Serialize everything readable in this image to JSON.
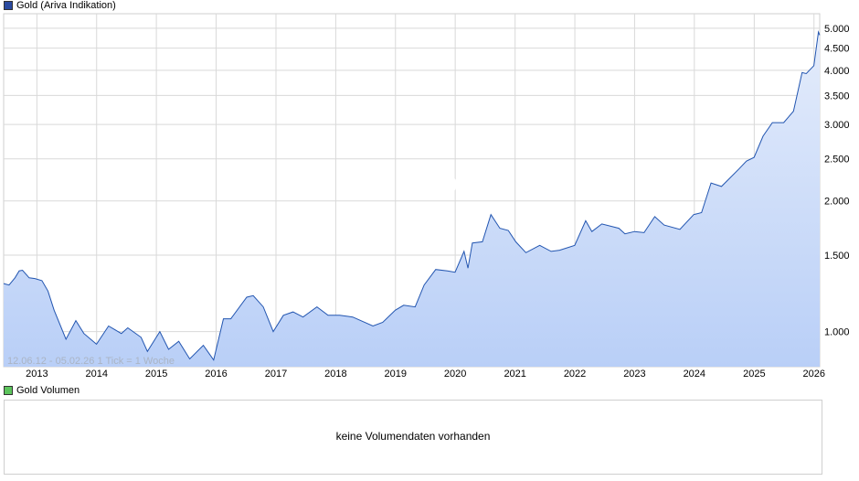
{
  "price_panel": {
    "legend_label": "Gold (Ariva Indikation)",
    "legend_color": "#2a4aa0",
    "range_info": "12.06.12 - 05.02.26   1 Tick = 1 Woche",
    "watermark": "ARIVA.DE"
  },
  "volume_panel": {
    "legend_label": "Gold Volumen",
    "legend_color": "#5cc45c",
    "message": "keine Volumendaten vorhanden"
  },
  "colors": {
    "line": "#2255b0",
    "fill_top": "#e4ecfb",
    "fill_bottom": "#b9cff7",
    "grid": "#d9d9d9"
  },
  "chart_data": {
    "type": "area",
    "title": "Gold (Ariva Indikation)",
    "yscale": "log",
    "ylim": [
      830,
      5400
    ],
    "xlim": [
      "2012-06-12",
      "2026-02-05"
    ],
    "y_ticks": [
      {
        "value": 1000,
        "label": "1.000"
      },
      {
        "value": 1500,
        "label": "1.500"
      },
      {
        "value": 2000,
        "label": "2.000"
      },
      {
        "value": 2500,
        "label": "2.500"
      },
      {
        "value": 3000,
        "label": "3.000"
      },
      {
        "value": 3500,
        "label": "3.500"
      },
      {
        "value": 4000,
        "label": "4.000"
      },
      {
        "value": 4500,
        "label": "4.500"
      },
      {
        "value": 5000,
        "label": "5.000"
      }
    ],
    "x_ticks": [
      {
        "value": "2013-01-01",
        "label": "2013"
      },
      {
        "value": "2014-01-01",
        "label": "2014"
      },
      {
        "value": "2015-01-01",
        "label": "2015"
      },
      {
        "value": "2016-01-01",
        "label": "2016"
      },
      {
        "value": "2017-01-01",
        "label": "2017"
      },
      {
        "value": "2018-01-01",
        "label": "2018"
      },
      {
        "value": "2019-01-01",
        "label": "2019"
      },
      {
        "value": "2020-01-01",
        "label": "2020"
      },
      {
        "value": "2021-01-01",
        "label": "2021"
      },
      {
        "value": "2022-01-01",
        "label": "2022"
      },
      {
        "value": "2023-01-01",
        "label": "2023"
      },
      {
        "value": "2024-01-01",
        "label": "2024"
      },
      {
        "value": "2025-01-01",
        "label": "2025"
      },
      {
        "value": "2026-01-01",
        "label": "2026"
      }
    ],
    "series": [
      {
        "points": [
          [
            "2012-06-12",
            1290
          ],
          [
            "2012-07-15",
            1280
          ],
          [
            "2012-08-20",
            1330
          ],
          [
            "2012-09-15",
            1380
          ],
          [
            "2012-10-05",
            1385
          ],
          [
            "2012-11-15",
            1330
          ],
          [
            "2012-12-20",
            1325
          ],
          [
            "2013-02-01",
            1310
          ],
          [
            "2013-03-10",
            1240
          ],
          [
            "2013-04-16",
            1120
          ],
          [
            "2013-06-28",
            960
          ],
          [
            "2013-08-27",
            1060
          ],
          [
            "2013-10-15",
            990
          ],
          [
            "2013-12-31",
            935
          ],
          [
            "2014-03-15",
            1030
          ],
          [
            "2014-06-01",
            990
          ],
          [
            "2014-07-10",
            1020
          ],
          [
            "2014-09-30",
            970
          ],
          [
            "2014-11-07",
            900
          ],
          [
            "2015-01-22",
            1000
          ],
          [
            "2015-03-17",
            910
          ],
          [
            "2015-05-18",
            950
          ],
          [
            "2015-07-24",
            865
          ],
          [
            "2015-10-15",
            930
          ],
          [
            "2015-12-17",
            860
          ],
          [
            "2016-02-15",
            1070
          ],
          [
            "2016-03-31",
            1070
          ],
          [
            "2016-07-06",
            1200
          ],
          [
            "2016-08-15",
            1210
          ],
          [
            "2016-10-15",
            1140
          ],
          [
            "2016-12-15",
            1000
          ],
          [
            "2017-02-15",
            1090
          ],
          [
            "2017-04-15",
            1110
          ],
          [
            "2017-06-15",
            1080
          ],
          [
            "2017-09-08",
            1140
          ],
          [
            "2017-11-15",
            1090
          ],
          [
            "2018-01-25",
            1090
          ],
          [
            "2018-04-15",
            1080
          ],
          [
            "2018-08-16",
            1030
          ],
          [
            "2018-10-15",
            1050
          ],
          [
            "2018-12-31",
            1120
          ],
          [
            "2019-02-20",
            1150
          ],
          [
            "2019-05-01",
            1140
          ],
          [
            "2019-06-25",
            1280
          ],
          [
            "2019-09-04",
            1390
          ],
          [
            "2019-11-15",
            1380
          ],
          [
            "2019-12-31",
            1370
          ],
          [
            "2020-02-24",
            1530
          ],
          [
            "2020-03-19",
            1400
          ],
          [
            "2020-04-15",
            1600
          ],
          [
            "2020-06-15",
            1610
          ],
          [
            "2020-08-06",
            1860
          ],
          [
            "2020-09-30",
            1730
          ],
          [
            "2020-11-20",
            1710
          ],
          [
            "2021-01-05",
            1610
          ],
          [
            "2021-03-08",
            1520
          ],
          [
            "2021-05-31",
            1580
          ],
          [
            "2021-08-09",
            1530
          ],
          [
            "2021-09-30",
            1540
          ],
          [
            "2021-12-31",
            1580
          ],
          [
            "2022-03-08",
            1800
          ],
          [
            "2022-04-15",
            1700
          ],
          [
            "2022-06-15",
            1770
          ],
          [
            "2022-09-27",
            1730
          ],
          [
            "2022-11-03",
            1680
          ],
          [
            "2022-12-31",
            1700
          ],
          [
            "2023-02-28",
            1690
          ],
          [
            "2023-05-04",
            1840
          ],
          [
            "2023-06-30",
            1760
          ],
          [
            "2023-10-05",
            1720
          ],
          [
            "2023-12-28",
            1860
          ],
          [
            "2024-02-14",
            1880
          ],
          [
            "2024-04-12",
            2200
          ],
          [
            "2024-06-15",
            2160
          ],
          [
            "2024-09-30",
            2370
          ],
          [
            "2024-11-14",
            2470
          ],
          [
            "2024-12-31",
            2520
          ],
          [
            "2025-02-24",
            2820
          ],
          [
            "2025-04-22",
            3030
          ],
          [
            "2025-06-30",
            3030
          ],
          [
            "2025-08-29",
            3220
          ],
          [
            "2025-10-20",
            3950
          ],
          [
            "2025-11-15",
            3930
          ],
          [
            "2025-12-31",
            4100
          ],
          [
            "2026-01-28",
            4900
          ],
          [
            "2026-02-05",
            4820
          ]
        ]
      }
    ]
  }
}
